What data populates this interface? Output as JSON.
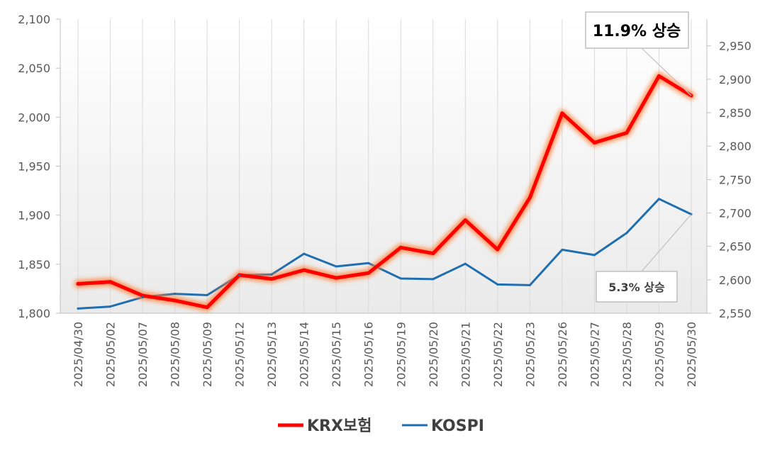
{
  "chart_data": {
    "type": "line",
    "categories": [
      "2025/04/30",
      "2025/05/02",
      "2025/05/07",
      "2025/05/08",
      "2025/05/09",
      "2025/05/12",
      "2025/05/13",
      "2025/05/14",
      "2025/05/15",
      "2025/05/16",
      "2025/05/19",
      "2025/05/20",
      "2025/05/21",
      "2025/05/22",
      "2025/05/23",
      "2025/05/26",
      "2025/05/27",
      "2025/05/28",
      "2025/05/29",
      "2025/05/30"
    ],
    "series": [
      {
        "name": "KRX보험",
        "axis": "left",
        "color": "#ff0000",
        "values": [
          1830,
          1832,
          1818,
          1813,
          1806,
          1839,
          1835,
          1844,
          1836,
          1841,
          1867,
          1861,
          1895,
          1865,
          1918,
          2004,
          1974,
          1984,
          2042,
          2022
        ]
      },
      {
        "name": "KOSPI",
        "axis": "right",
        "color": "#1f6fb0",
        "values": [
          2557,
          2560,
          2574,
          2579,
          2577,
          2607,
          2608,
          2639,
          2620,
          2625,
          2602,
          2601,
          2624,
          2593,
          2592,
          2645,
          2637,
          2670,
          2721,
          2698
        ]
      }
    ],
    "y_left": {
      "min": 1800,
      "max": 2100,
      "ticks": [
        "1,800",
        "1,850",
        "1,900",
        "1,950",
        "2,000",
        "2,050",
        "2,100"
      ]
    },
    "y_right": {
      "min": 2550,
      "max": 2990,
      "ticks": [
        "2,550",
        "2,600",
        "2,650",
        "2,700",
        "2,750",
        "2,800",
        "2,850",
        "2,900",
        "2,950"
      ]
    },
    "legend": {
      "position": "bottom"
    },
    "grid": "vertical",
    "annotations": [
      {
        "text": "11.9% 상승",
        "series": "KRX보험"
      },
      {
        "text": "5.3% 상승",
        "series": "KOSPI"
      }
    ]
  }
}
